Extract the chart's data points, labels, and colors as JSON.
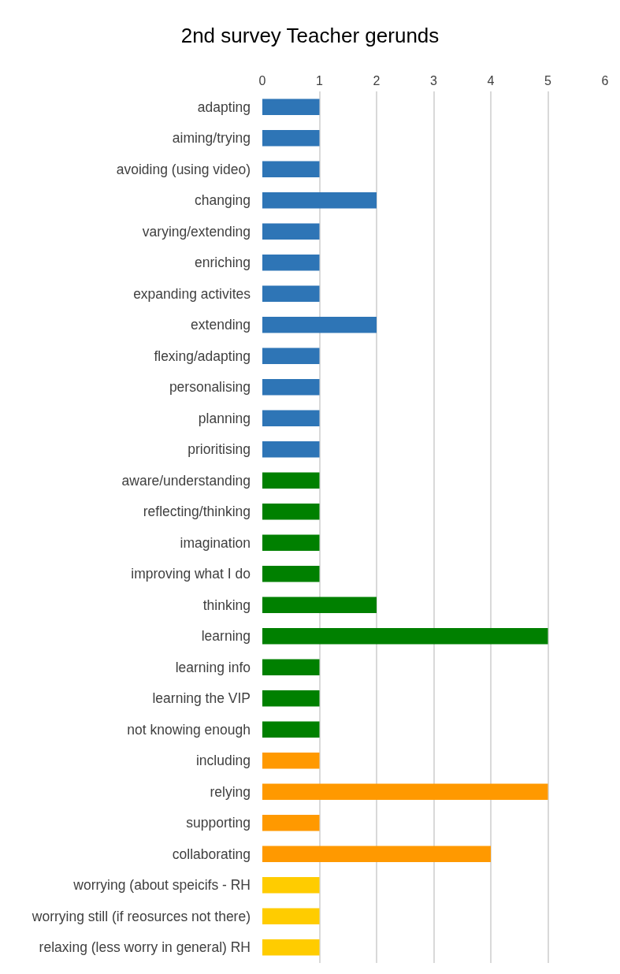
{
  "chart_data": {
    "type": "bar",
    "orientation": "horizontal",
    "title": "2nd survey Teacher gerunds",
    "categories": [
      "adapting",
      "aiming/trying",
      "avoiding (using video)",
      "changing",
      "varying/extending",
      "enriching",
      "expanding activites",
      "extending",
      "flexing/adapting",
      "personalising",
      "planning",
      "prioritising",
      "aware/understanding",
      "reflecting/thinking",
      "imagination",
      "improving what I do",
      "thinking",
      "learning",
      "learning info",
      "learning the VIP",
      "not knowing enough",
      "including",
      "relying",
      "supporting",
      "collaborating",
      "worrying (about speicifs - RH",
      "worrying still (if reosurces not there)",
      "relaxing (less worry in general) RH"
    ],
    "values": [
      1,
      1,
      1,
      2,
      1,
      1,
      1,
      2,
      1,
      1,
      1,
      1,
      1,
      1,
      1,
      1,
      2,
      5,
      1,
      1,
      1,
      1,
      5,
      1,
      4,
      1,
      1,
      1
    ],
    "colors": [
      "#2e75b6",
      "#2e75b6",
      "#2e75b6",
      "#2e75b6",
      "#2e75b6",
      "#2e75b6",
      "#2e75b6",
      "#2e75b6",
      "#2e75b6",
      "#2e75b6",
      "#2e75b6",
      "#2e75b6",
      "#008000",
      "#008000",
      "#008000",
      "#008000",
      "#008000",
      "#008000",
      "#008000",
      "#008000",
      "#008000",
      "#ff9900",
      "#ff9900",
      "#ff9900",
      "#ff9900",
      "#ffcc00",
      "#ffcc00",
      "#ffcc00"
    ],
    "xlim": [
      0,
      6
    ],
    "xticks": [
      0,
      1,
      2,
      3,
      4,
      5,
      6
    ],
    "grid": "x"
  }
}
